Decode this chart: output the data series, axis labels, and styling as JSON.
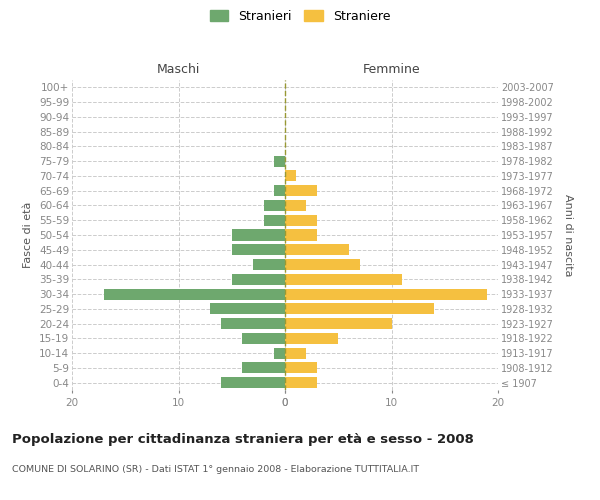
{
  "age_groups": [
    "100+",
    "95-99",
    "90-94",
    "85-89",
    "80-84",
    "75-79",
    "70-74",
    "65-69",
    "60-64",
    "55-59",
    "50-54",
    "45-49",
    "40-44",
    "35-39",
    "30-34",
    "25-29",
    "20-24",
    "15-19",
    "10-14",
    "5-9",
    "0-4"
  ],
  "birth_years": [
    "≤ 1907",
    "1908-1912",
    "1913-1917",
    "1918-1922",
    "1923-1927",
    "1928-1932",
    "1933-1937",
    "1938-1942",
    "1943-1947",
    "1948-1952",
    "1953-1957",
    "1958-1962",
    "1963-1967",
    "1968-1972",
    "1973-1977",
    "1978-1982",
    "1983-1987",
    "1988-1992",
    "1993-1997",
    "1998-2002",
    "2003-2007"
  ],
  "maschi": [
    0,
    0,
    0,
    0,
    0,
    1,
    0,
    1,
    2,
    2,
    5,
    5,
    3,
    5,
    17,
    7,
    6,
    4,
    1,
    4,
    6
  ],
  "femmine": [
    0,
    0,
    0,
    0,
    0,
    0,
    1,
    3,
    2,
    3,
    3,
    6,
    7,
    11,
    19,
    14,
    10,
    5,
    2,
    3,
    3
  ],
  "maschi_color": "#6ea86e",
  "femmine_color": "#f5c040",
  "title": "Popolazione per cittadinanza straniera per età e sesso - 2008",
  "subtitle": "COMUNE DI SOLARINO (SR) - Dati ISTAT 1° gennaio 2008 - Elaborazione TUTTITALIA.IT",
  "legend_maschi": "Stranieri",
  "legend_femmine": "Straniere",
  "xlabel_left": "Maschi",
  "xlabel_right": "Femmine",
  "ylabel_left": "Fasce di età",
  "ylabel_right": "Anni di nascita",
  "xlim": 20,
  "background_color": "#ffffff",
  "grid_color": "#cccccc",
  "axis_label_color": "#555555",
  "tick_color": "#888888"
}
